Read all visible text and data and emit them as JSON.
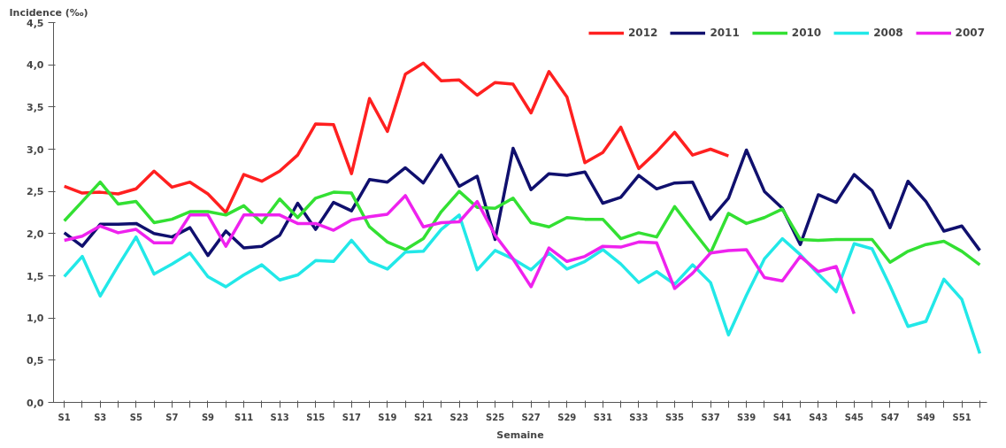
{
  "chart_data": {
    "type": "line",
    "ylabel": "Incidence (‰)",
    "xlabel": "Semaine",
    "categories": [
      "S1",
      null,
      "S3",
      null,
      "S5",
      null,
      "S7",
      null,
      "S9",
      null,
      "S11",
      null,
      "S13",
      null,
      "S15",
      null,
      "S17",
      null,
      "S19",
      null,
      "S21",
      null,
      "S23",
      null,
      "S25",
      null,
      "S27",
      null,
      "S29",
      null,
      "S31",
      null,
      "S33",
      null,
      "S35",
      null,
      "S37",
      null,
      "S39",
      null,
      "S41",
      null,
      "S43",
      null,
      "S45",
      null,
      "S47",
      null,
      "S49",
      null,
      "S51",
      null
    ],
    "ylim": [
      0,
      4.5
    ],
    "yticks": [
      {
        "value": 0,
        "label": "0,0"
      },
      {
        "value": 0.5,
        "label": "0,5"
      },
      {
        "value": 1,
        "label": "1,0"
      },
      {
        "value": 1.5,
        "label": "1,5"
      },
      {
        "value": 2,
        "label": "2,0"
      },
      {
        "value": 2.5,
        "label": "2,5"
      },
      {
        "value": 3,
        "label": "3,0"
      },
      {
        "value": 3.5,
        "label": "3,5"
      },
      {
        "value": 4,
        "label": "4,0"
      },
      {
        "value": 4.5,
        "label": "4,5"
      }
    ],
    "grid": false,
    "legend": "top right",
    "marker": "none",
    "line_style": "solid",
    "series": [
      {
        "name": "2012",
        "color": "#ff2020",
        "values": [
          2.56,
          2.48,
          2.49,
          2.47,
          2.53,
          2.74,
          2.55,
          2.61,
          2.47,
          2.25,
          2.7,
          2.62,
          2.74,
          2.93,
          3.3,
          3.29,
          2.71,
          3.6,
          3.21,
          3.89,
          4.02,
          3.81,
          3.82,
          3.64,
          3.79,
          3.77,
          3.43,
          3.92,
          3.62,
          2.84,
          2.96,
          3.26,
          2.77,
          2.97,
          3.2,
          2.93,
          3.0,
          2.92,
          null,
          null,
          null,
          null,
          null,
          null,
          null,
          null,
          null,
          null,
          null,
          null,
          null,
          null
        ]
      },
      {
        "name": "2011",
        "color": "#10106e",
        "values": [
          2.01,
          1.85,
          2.11,
          2.11,
          2.12,
          2.0,
          1.96,
          2.07,
          1.74,
          2.03,
          1.83,
          1.85,
          1.98,
          2.36,
          2.05,
          2.37,
          2.27,
          2.64,
          2.61,
          2.78,
          2.6,
          2.93,
          2.56,
          2.68,
          1.93,
          3.01,
          2.52,
          2.71,
          2.69,
          2.73,
          2.36,
          2.43,
          2.69,
          2.53,
          2.6,
          2.61,
          2.17,
          2.42,
          2.99,
          2.5,
          2.3,
          1.87,
          2.46,
          2.37,
          2.7,
          2.51,
          2.07,
          2.62,
          2.38,
          2.03,
          2.09,
          1.8
        ]
      },
      {
        "name": "2010",
        "color": "#33e033",
        "values": [
          2.15,
          2.38,
          2.61,
          2.35,
          2.38,
          2.13,
          2.17,
          2.26,
          2.26,
          2.22,
          2.33,
          2.13,
          2.41,
          2.19,
          2.42,
          2.49,
          2.48,
          2.08,
          1.9,
          1.81,
          1.94,
          2.26,
          2.5,
          2.31,
          2.3,
          2.42,
          2.13,
          2.08,
          2.19,
          2.17,
          2.17,
          1.94,
          2.01,
          1.96,
          2.32,
          2.04,
          1.77,
          2.24,
          2.12,
          2.19,
          2.29,
          1.93,
          1.92,
          1.93,
          1.93,
          1.93,
          1.66,
          1.79,
          1.87,
          1.91,
          1.79,
          1.63
        ]
      },
      {
        "name": "2008",
        "color": "#22e8e8",
        "values": [
          1.49,
          1.73,
          1.26,
          1.62,
          1.96,
          1.52,
          1.64,
          1.77,
          1.49,
          1.37,
          1.51,
          1.63,
          1.45,
          1.51,
          1.68,
          1.67,
          1.92,
          1.67,
          1.58,
          1.78,
          1.79,
          2.05,
          2.22,
          1.57,
          1.8,
          1.7,
          1.57,
          1.77,
          1.58,
          1.67,
          1.81,
          1.64,
          1.42,
          1.55,
          1.4,
          1.63,
          1.42,
          0.8,
          1.27,
          1.7,
          1.94,
          1.75,
          1.52,
          1.31,
          1.88,
          1.82,
          1.38,
          0.9,
          0.96,
          1.46,
          1.22,
          0.58
        ]
      },
      {
        "name": "2007",
        "color": "#ee22ee",
        "values": [
          1.92,
          1.97,
          2.09,
          2.01,
          2.05,
          1.89,
          1.89,
          2.22,
          2.22,
          1.85,
          2.22,
          2.22,
          2.22,
          2.12,
          2.12,
          2.04,
          2.16,
          2.2,
          2.23,
          2.45,
          2.08,
          2.13,
          2.14,
          2.38,
          1.98,
          1.7,
          1.37,
          1.83,
          1.67,
          1.73,
          1.85,
          1.84,
          1.9,
          1.89,
          1.35,
          1.53,
          1.77,
          1.8,
          1.81,
          1.48,
          1.44,
          1.73,
          1.55,
          1.61,
          1.05,
          null,
          null,
          null,
          null,
          null,
          null,
          null
        ]
      }
    ]
  }
}
